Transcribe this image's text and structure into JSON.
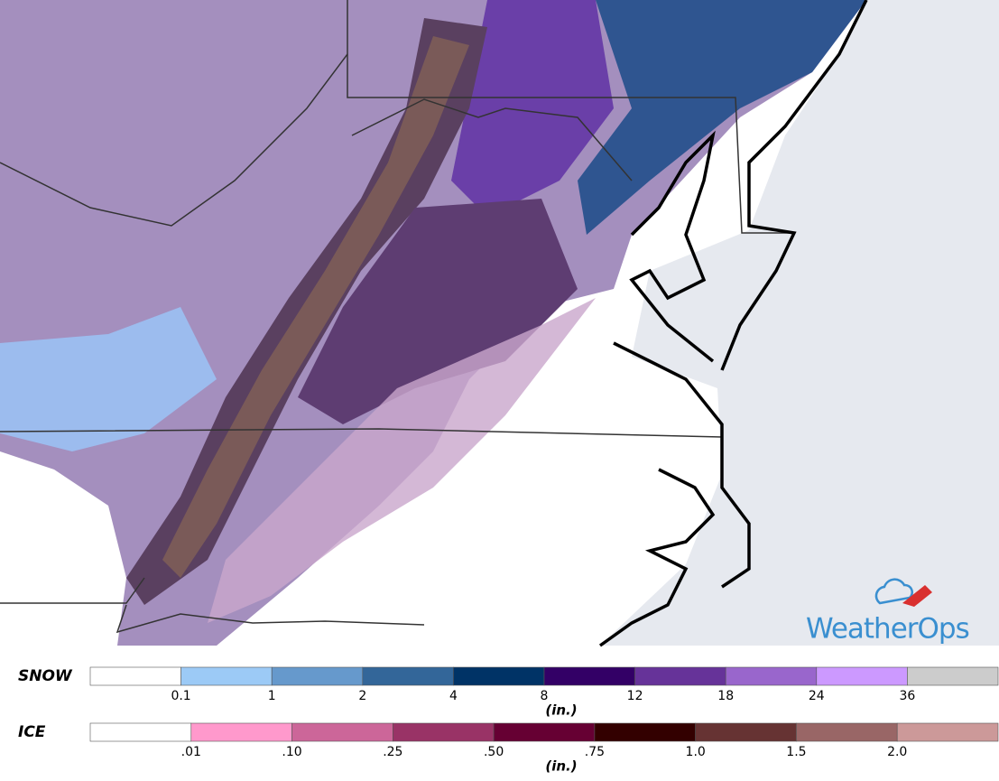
{
  "map": {
    "logo": "WeatherOps"
  },
  "legends": [
    {
      "title": "SNOW",
      "unit": "(in.)",
      "colors": [
        "#ffffff",
        "#9ccaf6",
        "#6699cc",
        "#336699",
        "#003366",
        "#330066",
        "#663399",
        "#9966cc",
        "#cc99ff",
        "#cccccc"
      ],
      "labels": [
        "0.1",
        "1",
        "2",
        "4",
        "8",
        "12",
        "18",
        "24",
        "36"
      ]
    },
    {
      "title": "ICE",
      "unit": "(in.)",
      "colors": [
        "#ffffff",
        "#ff99cc",
        "#cc6699",
        "#993366",
        "#660033",
        "#330000",
        "#663333",
        "#996666",
        "#cc9999"
      ],
      "labels": [
        ".01",
        ".10",
        ".25",
        ".50",
        ".75",
        "1.0",
        "1.5",
        "2.0"
      ]
    }
  ]
}
